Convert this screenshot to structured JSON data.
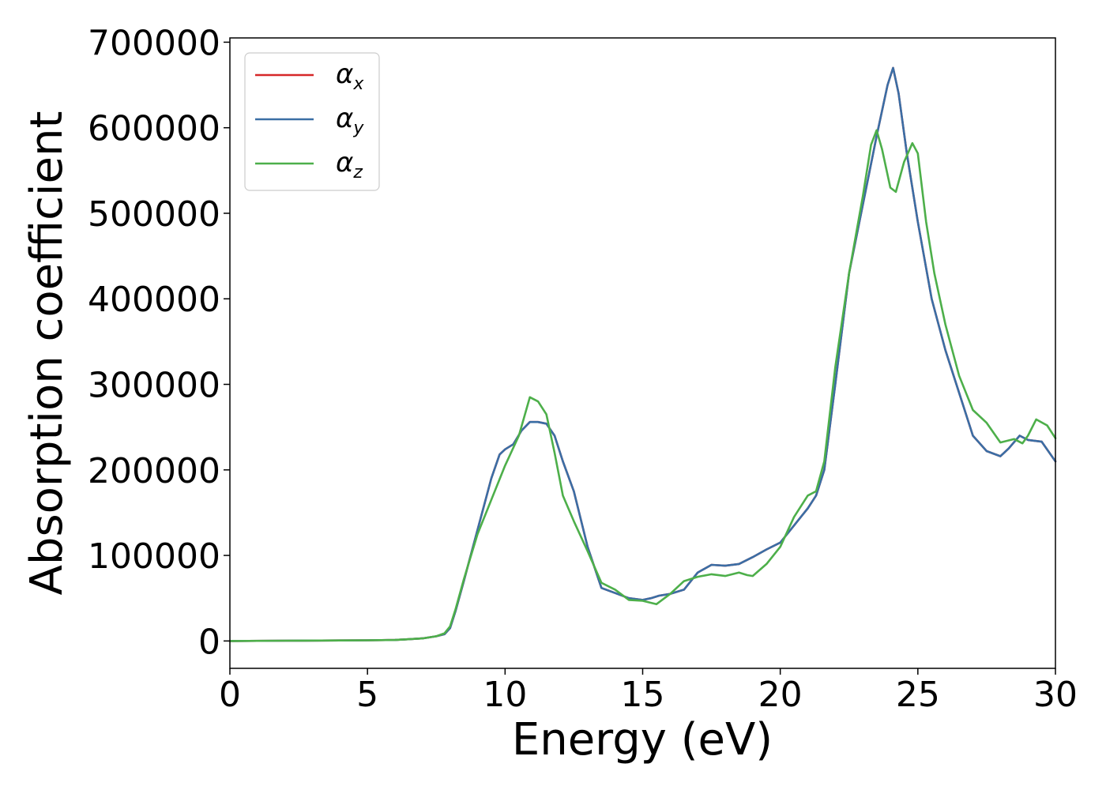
{
  "chart_data": {
    "type": "line",
    "title": "",
    "xlabel": "Energy (eV)",
    "ylabel": "Absorption coefficient",
    "xlim": [
      0,
      30
    ],
    "ylim": [
      -32000,
      705000
    ],
    "xticks": [
      0,
      5,
      10,
      15,
      20,
      25,
      30
    ],
    "yticks": [
      0,
      100000,
      200000,
      300000,
      400000,
      500000,
      600000,
      700000
    ],
    "xtick_labels": [
      "0",
      "5",
      "10",
      "15",
      "20",
      "25",
      "30"
    ],
    "ytick_labels": [
      "0",
      "100000",
      "200000",
      "300000",
      "400000",
      "500000",
      "600000",
      "700000"
    ],
    "grid": false,
    "legend": {
      "position": "top-left",
      "entries": [
        {
          "symbol": "α",
          "subscript": "x",
          "color": "#d62728"
        },
        {
          "symbol": "α",
          "subscript": "y",
          "color": "#3a6ea5"
        },
        {
          "symbol": "α",
          "subscript": "z",
          "color": "#4daf4a"
        }
      ]
    },
    "series": [
      {
        "color": "#d62728",
        "x": [
          0,
          2,
          4,
          5,
          6,
          7,
          7.5,
          7.8,
          8.0,
          8.2,
          8.5,
          9.0,
          9.5,
          9.8,
          10.0,
          10.3,
          10.6,
          10.9,
          11.2,
          11.5,
          11.8,
          12.1,
          12.5,
          13.0,
          13.5,
          14.0,
          14.5,
          15.0,
          15.3,
          15.6,
          16.0,
          16.5,
          17.0,
          17.5,
          18.0,
          18.5,
          19.0,
          19.5,
          20.0,
          20.5,
          21.0,
          21.3,
          21.6,
          22.0,
          22.5,
          23.0,
          23.5,
          23.9,
          24.1,
          24.3,
          24.6,
          25.0,
          25.5,
          26.0,
          26.5,
          27.0,
          27.5,
          28.0,
          28.3,
          28.7,
          29.0,
          29.5,
          30.0
        ],
        "y": [
          0,
          300,
          600,
          800,
          1200,
          3000,
          5500,
          8000,
          15000,
          35000,
          70000,
          130000,
          190000,
          218000,
          224000,
          230000,
          246000,
          256000,
          256000,
          254000,
          240000,
          210000,
          175000,
          110000,
          62000,
          56000,
          50000,
          48000,
          50000,
          53000,
          55000,
          60000,
          80000,
          89000,
          88000,
          90000,
          98000,
          107000,
          115000,
          135000,
          155000,
          170000,
          200000,
          300000,
          430000,
          510000,
          590000,
          650000,
          670000,
          640000,
          570000,
          490000,
          400000,
          340000,
          290000,
          240000,
          222000,
          216000,
          225000,
          240000,
          235000,
          233000,
          210000
        ]
      },
      {
        "color": "#3a6ea5",
        "x": [
          0,
          2,
          4,
          5,
          6,
          7,
          7.5,
          7.8,
          8.0,
          8.2,
          8.5,
          9.0,
          9.5,
          9.8,
          10.0,
          10.3,
          10.6,
          10.9,
          11.2,
          11.5,
          11.8,
          12.1,
          12.5,
          13.0,
          13.5,
          14.0,
          14.5,
          15.0,
          15.3,
          15.6,
          16.0,
          16.5,
          17.0,
          17.5,
          18.0,
          18.5,
          19.0,
          19.5,
          20.0,
          20.5,
          21.0,
          21.3,
          21.6,
          22.0,
          22.5,
          23.0,
          23.5,
          23.9,
          24.1,
          24.3,
          24.6,
          25.0,
          25.5,
          26.0,
          26.5,
          27.0,
          27.5,
          28.0,
          28.3,
          28.7,
          29.0,
          29.5,
          30.0
        ],
        "y": [
          0,
          300,
          600,
          800,
          1200,
          3000,
          5500,
          8000,
          15000,
          35000,
          70000,
          130000,
          190000,
          218000,
          224000,
          230000,
          246000,
          256000,
          256000,
          254000,
          240000,
          210000,
          175000,
          110000,
          62000,
          56000,
          50000,
          48000,
          50000,
          53000,
          55000,
          60000,
          80000,
          89000,
          88000,
          90000,
          98000,
          107000,
          115000,
          135000,
          155000,
          170000,
          200000,
          300000,
          430000,
          510000,
          590000,
          650000,
          670000,
          640000,
          570000,
          490000,
          400000,
          340000,
          290000,
          240000,
          222000,
          216000,
          225000,
          240000,
          235000,
          233000,
          210000
        ]
      },
      {
        "color": "#4daf4a",
        "x": [
          0,
          2,
          4,
          5,
          6,
          7,
          7.5,
          7.8,
          8.0,
          8.2,
          8.5,
          9.0,
          9.5,
          10.0,
          10.5,
          10.9,
          11.2,
          11.5,
          11.8,
          12.1,
          12.5,
          13.0,
          13.5,
          14.0,
          14.5,
          15.0,
          15.5,
          16.0,
          16.5,
          17.0,
          17.5,
          18.0,
          18.5,
          18.8,
          19.0,
          19.5,
          20.0,
          20.5,
          21.0,
          21.3,
          21.6,
          22.0,
          22.5,
          23.0,
          23.3,
          23.5,
          23.7,
          24.0,
          24.2,
          24.5,
          24.8,
          25.0,
          25.3,
          25.6,
          26.0,
          26.5,
          27.0,
          27.5,
          28.0,
          28.5,
          28.8,
          29.0,
          29.3,
          29.7,
          30.0
        ],
        "y": [
          0,
          300,
          600,
          800,
          1200,
          3000,
          5500,
          9000,
          17000,
          37000,
          72000,
          125000,
          165000,
          205000,
          240000,
          285000,
          280000,
          265000,
          220000,
          170000,
          140000,
          105000,
          68000,
          60000,
          48000,
          47000,
          43000,
          55000,
          70000,
          75000,
          78000,
          76000,
          80000,
          77000,
          76000,
          90000,
          110000,
          145000,
          170000,
          175000,
          210000,
          320000,
          430000,
          520000,
          580000,
          597000,
          575000,
          530000,
          525000,
          560000,
          582000,
          570000,
          490000,
          430000,
          370000,
          310000,
          270000,
          255000,
          232000,
          236000,
          231000,
          240000,
          259000,
          252000,
          237000
        ]
      }
    ]
  }
}
